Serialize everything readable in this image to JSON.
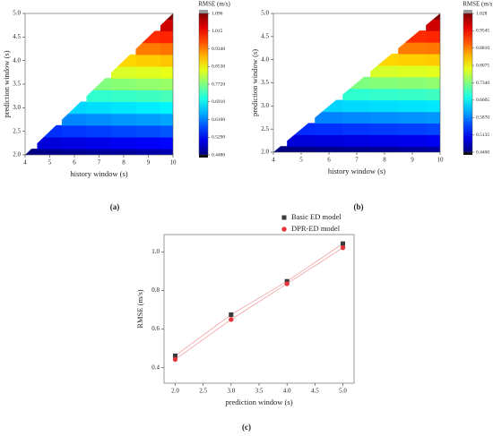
{
  "chart_data": [
    {
      "type": "contour",
      "panel_label": "(a)",
      "x_label": "history window (s)",
      "y_label": "prediction window (s)",
      "colorbar_label": "RMSE (m/s)",
      "x": [
        4,
        5,
        6,
        7,
        8,
        9,
        10
      ],
      "y": [
        2,
        2.25,
        2.5,
        2.75,
        3,
        3.25,
        3.5,
        3.75,
        4,
        4.25,
        4.5,
        4.75,
        5
      ],
      "z": [
        [
          0.45,
          0.455,
          0.46,
          0.465,
          0.47,
          0.475,
          0.48
        ],
        [
          null,
          0.506,
          0.511,
          0.516,
          0.521,
          0.526,
          0.531
        ],
        [
          null,
          0.558,
          0.563,
          0.568,
          0.573,
          0.578,
          0.583
        ],
        [
          null,
          null,
          0.614,
          0.619,
          0.624,
          0.629,
          0.634
        ],
        [
          null,
          null,
          0.665,
          0.67,
          0.675,
          0.68,
          0.685
        ],
        [
          null,
          null,
          null,
          0.721,
          0.726,
          0.731,
          0.736
        ],
        [
          null,
          null,
          null,
          0.773,
          0.778,
          0.783,
          0.788
        ],
        [
          null,
          null,
          null,
          null,
          0.829,
          0.834,
          0.839
        ],
        [
          null,
          null,
          null,
          null,
          0.88,
          0.885,
          0.89
        ],
        [
          null,
          null,
          null,
          null,
          null,
          0.936,
          0.941
        ],
        [
          null,
          null,
          null,
          null,
          null,
          0.988,
          0.993
        ],
        [
          null,
          null,
          null,
          null,
          null,
          null,
          1.044
        ],
        [
          null,
          null,
          null,
          null,
          null,
          null,
          1.095
        ]
      ],
      "xlim": [
        4,
        10
      ],
      "xticks": [
        4,
        5,
        6,
        7,
        8,
        9,
        10
      ],
      "ylim": [
        2,
        5
      ],
      "yticks": [
        {
          "value": 2,
          "label": "2.0"
        },
        {
          "value": 2.5,
          "label": "2.5"
        },
        {
          "value": 3,
          "label": "3.0"
        },
        {
          "value": 3.5,
          "label": "3.5"
        },
        {
          "value": 4,
          "label": "4.0"
        },
        {
          "value": 4.5,
          "label": "4.5"
        },
        {
          "value": 5,
          "label": "5.0"
        }
      ],
      "zlim": [
        0.448,
        1.096
      ],
      "zticks": [
        {
          "value": 0.448,
          "label": "0.4480"
        },
        {
          "value": 0.529,
          "label": "0.5290"
        },
        {
          "value": 0.61,
          "label": "0.6100"
        },
        {
          "value": 0.691,
          "label": "0.6910"
        },
        {
          "value": 0.772,
          "label": "0.7720"
        },
        {
          "value": 0.853,
          "label": "0.8530"
        },
        {
          "value": 0.934,
          "label": "0.9340"
        },
        1.015,
        1.096
      ],
      "colormap": "jet"
    },
    {
      "type": "contour",
      "panel_label": "(b)",
      "x_label": "history window (s)",
      "y_label": "prediction window (s)",
      "colorbar_label": "RMSE (m/s)",
      "x": [
        4,
        5,
        6,
        7,
        8,
        9,
        10
      ],
      "y": [
        2,
        2.25,
        2.5,
        2.75,
        3,
        3.25,
        3.5,
        3.75,
        4,
        4.25,
        4.5,
        4.75,
        5
      ],
      "z": [
        [
          0.44,
          0.443,
          0.446,
          0.449,
          0.452,
          0.455,
          0.458
        ],
        [
          null,
          0.491,
          0.494,
          0.497,
          0.5,
          0.503,
          0.506
        ],
        [
          null,
          0.538,
          0.541,
          0.544,
          0.547,
          0.55,
          0.553
        ],
        [
          null,
          null,
          0.589,
          0.592,
          0.595,
          0.598,
          0.601
        ],
        [
          null,
          null,
          0.636,
          0.639,
          0.642,
          0.645,
          0.648
        ],
        [
          null,
          null,
          null,
          0.687,
          0.69,
          0.693,
          0.696
        ],
        [
          null,
          null,
          null,
          0.734,
          0.737,
          0.74,
          0.743
        ],
        [
          null,
          null,
          null,
          null,
          0.785,
          0.788,
          0.791
        ],
        [
          null,
          null,
          null,
          null,
          0.832,
          0.835,
          0.838
        ],
        [
          null,
          null,
          null,
          null,
          null,
          0.883,
          0.886
        ],
        [
          null,
          null,
          null,
          null,
          null,
          0.93,
          0.933
        ],
        [
          null,
          null,
          null,
          null,
          null,
          null,
          0.981
        ],
        [
          null,
          null,
          null,
          null,
          null,
          null,
          1.028
        ]
      ],
      "xlim": [
        4,
        10
      ],
      "xticks": [
        4,
        5,
        6,
        7,
        8,
        9,
        10
      ],
      "ylim": [
        2,
        5
      ],
      "yticks": [
        {
          "value": 2,
          "label": "2.0"
        },
        {
          "value": 2.5,
          "label": "2.5"
        },
        {
          "value": 3,
          "label": "3.0"
        },
        {
          "value": 3.5,
          "label": "3.5"
        },
        {
          "value": 4,
          "label": "4.0"
        },
        {
          "value": 4.5,
          "label": "4.5"
        },
        {
          "value": 5,
          "label": "5.0"
        }
      ],
      "zlim": [
        0.44,
        1.028
      ],
      "zticks": [
        {
          "value": 0.44,
          "label": "0.4400"
        },
        0.5135,
        {
          "value": 0.587,
          "label": "0.5870"
        },
        0.6605,
        {
          "value": 0.734,
          "label": "0.7340"
        },
        0.8075,
        {
          "value": 0.881,
          "label": "0.8810"
        },
        0.9545,
        1.028
      ],
      "colormap": "jet"
    },
    {
      "type": "line",
      "panel_label": "(c)",
      "x_label": "prediction window (s)",
      "y_label": "RMSE (m/s)",
      "x": [
        2,
        3,
        4,
        5
      ],
      "series": [
        {
          "name": "Basic ED model",
          "color": "#3a3a3a",
          "line_color": "#f2a0a0",
          "marker": "square",
          "values": [
            0.462,
            0.675,
            0.848,
            1.043
          ]
        },
        {
          "name": "DPR-ED model",
          "color": "#e8333a",
          "line_color": "#f2a0a0",
          "marker": "circle",
          "values": [
            0.443,
            0.65,
            0.835,
            1.022
          ]
        }
      ],
      "xlim": [
        1.8,
        5.2
      ],
      "xticks": [
        {
          "value": 2,
          "label": "2.0"
        },
        2.5,
        {
          "value": 3,
          "label": "3.0"
        },
        3.5,
        {
          "value": 4,
          "label": "4.0"
        },
        4.5,
        {
          "value": 5,
          "label": "5.0"
        }
      ],
      "ylim": [
        0.32,
        1.09
      ],
      "yticks": [
        0.4,
        0.6,
        0.8,
        {
          "value": 1,
          "label": "1.0"
        }
      ],
      "legend": "top-right"
    }
  ]
}
